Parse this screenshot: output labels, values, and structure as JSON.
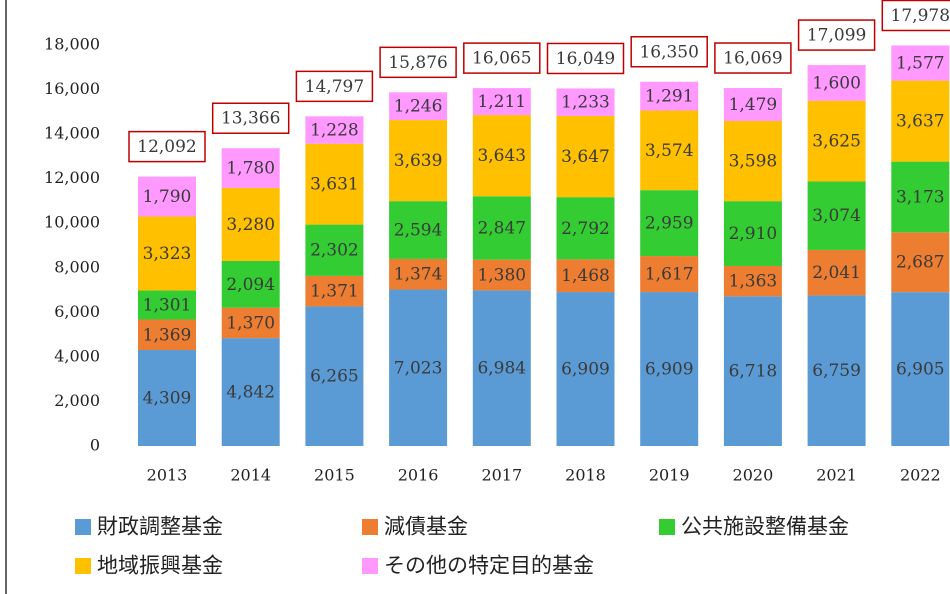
{
  "chart_data": {
    "type": "stacked_bar",
    "categories": [
      "2013",
      "2014",
      "2015",
      "2016",
      "2017",
      "2018",
      "2019",
      "2020",
      "2021",
      "2022"
    ],
    "series": [
      {
        "name": "財政調整基金",
        "color": "#5b9bd5",
        "values": [
          4309,
          4842,
          6265,
          7023,
          6984,
          6909,
          6909,
          6718,
          6759,
          6905
        ],
        "value_labels": [
          "4,309",
          "4,842",
          "6,265",
          "7,023",
          "6,984",
          "6,909",
          "6,909",
          "6,718",
          "6,759",
          "6,905"
        ]
      },
      {
        "name": "減債基金",
        "color": "#ed7d31",
        "values": [
          1369,
          1370,
          1371,
          1374,
          1380,
          1468,
          1617,
          1363,
          2041,
          2687
        ],
        "value_labels": [
          "1,369",
          "1,370",
          "1,371",
          "1,374",
          "1,380",
          "1,468",
          "1,617",
          "1,363",
          "2,041",
          "2,687"
        ]
      },
      {
        "name": "公共施設整備基金",
        "color": "#33cc33",
        "values": [
          1301,
          2094,
          2302,
          2594,
          2847,
          2792,
          2959,
          2910,
          3074,
          3173
        ],
        "value_labels": [
          "1,301",
          "2,094",
          "2,302",
          "2,594",
          "2,847",
          "2,792",
          "2,959",
          "2,910",
          "3,074",
          "3,173"
        ]
      },
      {
        "name": "地域振興基金",
        "color": "#ffc000",
        "values": [
          3323,
          3280,
          3631,
          3639,
          3643,
          3647,
          3574,
          3598,
          3625,
          3637
        ],
        "value_labels": [
          "3,323",
          "3,280",
          "3,631",
          "3,639",
          "3,643",
          "3,647",
          "3,574",
          "3,598",
          "3,625",
          "3,637"
        ]
      },
      {
        "name": "その他の特定目的基金",
        "color": "#ff99ff",
        "values": [
          1790,
          1780,
          1228,
          1246,
          1211,
          1233,
          1291,
          1479,
          1600,
          1577
        ],
        "value_labels": [
          "1,790",
          "1,780",
          "1,228",
          "1,246",
          "1,211",
          "1,233",
          "1,291",
          "1,479",
          "1,600",
          "1,577"
        ]
      }
    ],
    "totals": [
      12092,
      13366,
      14797,
      15876,
      16065,
      16049,
      16350,
      16069,
      17099,
      17978
    ],
    "total_labels": [
      "12,092",
      "13,366",
      "14,797",
      "15,876",
      "16,065",
      "16,049",
      "16,350",
      "16,069",
      "17,099",
      "17,978"
    ],
    "total_box_color": "#c00000",
    "ylim": [
      0,
      18000
    ],
    "yticks": [
      0,
      {
        "value": 2000,
        "label": "2,000"
      },
      {
        "value": 4000,
        "label": "4,000"
      },
      {
        "value": 6000,
        "label": "6,000"
      },
      {
        "value": 8000,
        "label": "8,000"
      },
      {
        "value": 10000,
        "label": "10,000"
      },
      {
        "value": 12000,
        "label": "12,000"
      },
      {
        "value": 14000,
        "label": "14,000"
      },
      {
        "value": 16000,
        "label": "16,000"
      },
      {
        "value": 18000,
        "label": "18,000"
      }
    ],
    "grid": false
  }
}
